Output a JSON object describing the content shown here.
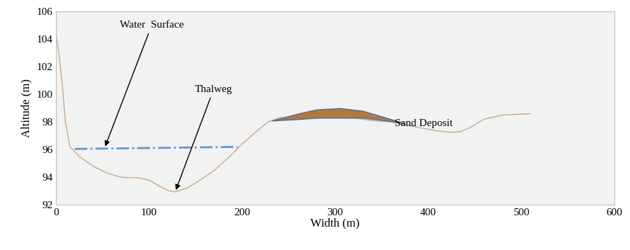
{
  "chart_data": {
    "type": "line",
    "x_label": "Width (m)",
    "y_label": "Altitude (m)",
    "xlim": [
      0,
      600
    ],
    "xticks": [
      0,
      100,
      200,
      300,
      400,
      500,
      600
    ],
    "ylim": [
      92,
      106
    ],
    "yticks": [
      92,
      94,
      96,
      98,
      100,
      102,
      104,
      106
    ],
    "grid": false,
    "series": [
      {
        "type": "line",
        "color": "#c8a98a",
        "line_style": "solid",
        "x": [
          0,
          3,
          7,
          10,
          15,
          25,
          40,
          55,
          70,
          90,
          100,
          110,
          120,
          128,
          140,
          155,
          170,
          185,
          200,
          215,
          228,
          240,
          260,
          280,
          300,
          320,
          340,
          360,
          375,
          390,
          410,
          425,
          435,
          445,
          460,
          480,
          510
        ],
        "values": [
          104.3,
          103,
          100.5,
          98,
          96.2,
          95.5,
          94.8,
          94.3,
          94.0,
          93.95,
          93.8,
          93.4,
          93.05,
          92.95,
          93.2,
          93.8,
          94.5,
          95.4,
          96.4,
          97.3,
          98.0,
          98.3,
          98.4,
          98.4,
          98.4,
          98.3,
          98.1,
          98.0,
          97.8,
          97.6,
          97.35,
          97.25,
          97.3,
          97.6,
          98.2,
          98.5,
          98.6
        ]
      },
      {
        "type": "line",
        "color": "#5b9bd5",
        "line_style": "dashdot",
        "x": [
          20,
          195
        ],
        "values": [
          96.05,
          96.2
        ]
      },
      {
        "type": "area",
        "color": "#b07a3c",
        "x": [
          232,
          260,
          280,
          305,
          330,
          355,
          375
        ],
        "values": [
          98.1,
          98.6,
          98.9,
          99.0,
          98.8,
          98.3,
          97.9
        ],
        "base": [
          98.1,
          98.2,
          98.3,
          98.3,
          98.3,
          98.1,
          97.9
        ]
      }
    ],
    "annotations": [
      {
        "text": "Water  Surface",
        "x": 52,
        "y": 96.1,
        "arrow": true
      },
      {
        "text": "Thalweg",
        "x": 128,
        "y": 92.95,
        "arrow": true
      },
      {
        "text": "Sand Deposit",
        "x": 305,
        "y": 99.0,
        "arrow": false
      }
    ]
  }
}
